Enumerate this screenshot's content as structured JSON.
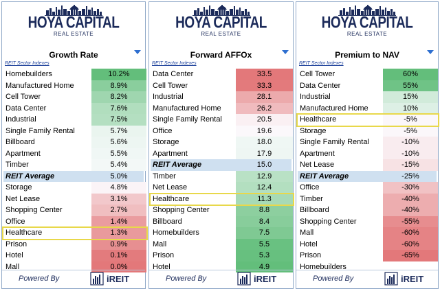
{
  "brand": {
    "name": "HOYA CAPITAL",
    "sub": "REAL ESTATE",
    "powered_by": "Powered By",
    "ireit": "iREIT"
  },
  "colors": {
    "green": "#63be7b",
    "red": "#e3787a",
    "avg": "#cfe0f0",
    "highlight": "#e8d84a",
    "navy": "#1b2a5a"
  },
  "icons": [
    "skyline-logo-icon",
    "dropdown-arrow-icon",
    "ireit-logo-icon"
  ],
  "chart_data": [
    {
      "type": "table",
      "title": "Growth Rate",
      "caption": "REIT Sector Indexes",
      "highlight": "Healthcare",
      "rows": [
        {
          "label": "Homebuilders",
          "value": 10.2,
          "display": "10.2%"
        },
        {
          "label": "Manufactured Home",
          "value": 8.9,
          "display": "8.9%"
        },
        {
          "label": "Cell Tower",
          "value": 8.2,
          "display": "8.2%"
        },
        {
          "label": "Data Center",
          "value": 7.6,
          "display": "7.6%"
        },
        {
          "label": "Industrial",
          "value": 7.5,
          "display": "7.5%"
        },
        {
          "label": "Single Family Rental",
          "value": 5.7,
          "display": "5.7%"
        },
        {
          "label": "Billboard",
          "value": 5.6,
          "display": "5.6%"
        },
        {
          "label": "Apartment",
          "value": 5.5,
          "display": "5.5%"
        },
        {
          "label": "Timber",
          "value": 5.4,
          "display": "5.4%"
        },
        {
          "label": "REIT Average",
          "value": 5.0,
          "display": "5.0%",
          "average": true
        },
        {
          "label": "Storage",
          "value": 4.8,
          "display": "4.8%"
        },
        {
          "label": "Net Lease",
          "value": 3.1,
          "display": "3.1%"
        },
        {
          "label": "Shopping Center",
          "value": 2.7,
          "display": "2.7%"
        },
        {
          "label": "Office",
          "value": 1.4,
          "display": "1.4%"
        },
        {
          "label": "Healthcare",
          "value": 1.3,
          "display": "1.3%"
        },
        {
          "label": "Prison",
          "value": 0.9,
          "display": "0.9%"
        },
        {
          "label": "Hotel",
          "value": 0.1,
          "display": "0.1%"
        },
        {
          "label": "Mall",
          "value": 0.0,
          "display": "0.0%"
        }
      ]
    },
    {
      "type": "table",
      "title": "Forward AFFOx",
      "caption": "REIT Sector Indexes",
      "highlight": "Healthcare",
      "reverse_colors": true,
      "rows": [
        {
          "label": "Data Center",
          "value": 33.5,
          "display": "33.5"
        },
        {
          "label": "Cell Tower",
          "value": 33.3,
          "display": "33.3"
        },
        {
          "label": "Industrial",
          "value": 28.1,
          "display": "28.1"
        },
        {
          "label": "Manufactured Home",
          "value": 26.2,
          "display": "26.2"
        },
        {
          "label": "Single Family Rental",
          "value": 20.5,
          "display": "20.5"
        },
        {
          "label": "Office",
          "value": 19.6,
          "display": "19.6"
        },
        {
          "label": "Storage",
          "value": 18.0,
          "display": "18.0"
        },
        {
          "label": "Apartment",
          "value": 17.9,
          "display": "17.9"
        },
        {
          "label": "REIT Average",
          "value": 15.0,
          "display": "15.0",
          "average": true
        },
        {
          "label": "Timber",
          "value": 12.9,
          "display": "12.9"
        },
        {
          "label": "Net Lease",
          "value": 12.4,
          "display": "12.4"
        },
        {
          "label": "Healthcare",
          "value": 11.3,
          "display": "11.3"
        },
        {
          "label": "Shopping Center",
          "value": 8.8,
          "display": "8.8"
        },
        {
          "label": "Billboard",
          "value": 8.4,
          "display": "8.4"
        },
        {
          "label": "Homebuilders",
          "value": 7.5,
          "display": "7.5"
        },
        {
          "label": "Mall",
          "value": 5.5,
          "display": "5.5"
        },
        {
          "label": "Prison",
          "value": 5.3,
          "display": "5.3"
        },
        {
          "label": "Hotel",
          "value": 4.9,
          "display": "4.9"
        }
      ]
    },
    {
      "type": "table",
      "title": "Premium to NAV",
      "caption": "REIT Sector Indexes",
      "highlight": "Healthcare",
      "rows": [
        {
          "label": "Cell Tower",
          "value": 60,
          "display": "60%"
        },
        {
          "label": "Data Center",
          "value": 55,
          "display": "55%"
        },
        {
          "label": "Industrial",
          "value": 15,
          "display": "15%"
        },
        {
          "label": "Manufactured Home",
          "value": 10,
          "display": "10%"
        },
        {
          "label": "Healthcare",
          "value": -5,
          "display": "-5%"
        },
        {
          "label": "Storage",
          "value": -5,
          "display": "-5%"
        },
        {
          "label": "Single Family Rental",
          "value": -10,
          "display": "-10%"
        },
        {
          "label": "Apartment",
          "value": -10,
          "display": "-10%"
        },
        {
          "label": "Net Lease",
          "value": -15,
          "display": "-15%"
        },
        {
          "label": "REIT Average",
          "value": -25,
          "display": "-25%",
          "average": true
        },
        {
          "label": "Office",
          "value": -30,
          "display": "-30%"
        },
        {
          "label": "Timber",
          "value": -40,
          "display": "-40%"
        },
        {
          "label": "Billboard",
          "value": -40,
          "display": "-40%"
        },
        {
          "label": "Shopping Center",
          "value": -55,
          "display": "-55%"
        },
        {
          "label": "Mall",
          "value": -60,
          "display": "-60%"
        },
        {
          "label": "Hotel",
          "value": -60,
          "display": "-60%"
        },
        {
          "label": "Prison",
          "value": -65,
          "display": "-65%"
        },
        {
          "label": "Homebuilders",
          "value": null,
          "display": ""
        }
      ]
    }
  ]
}
